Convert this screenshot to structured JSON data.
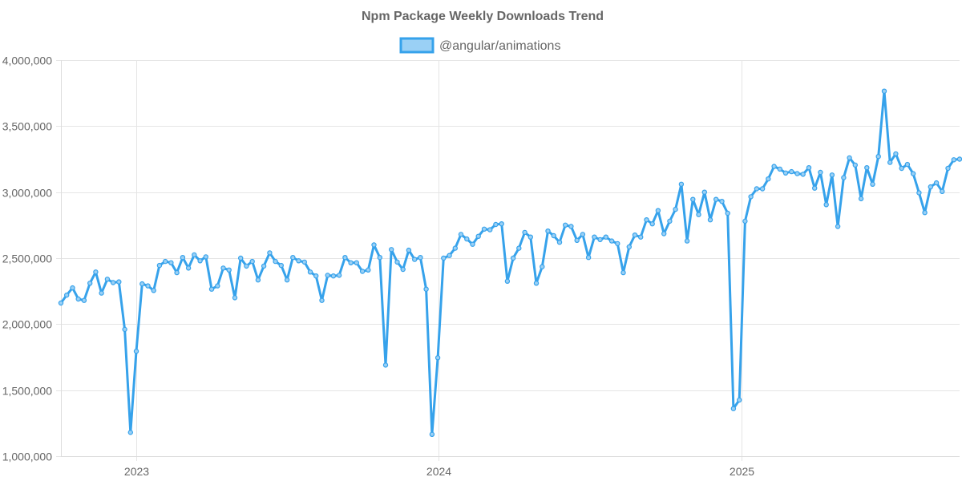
{
  "chart_data": {
    "type": "line",
    "title": "Npm Package Weekly Downloads Trend",
    "xlabel": "",
    "ylabel": "",
    "x_range": [
      "2022-10-02",
      "2025-09-21"
    ],
    "ylim": [
      1000000,
      4000000
    ],
    "y_ticks": [
      1000000,
      1500000,
      2000000,
      2500000,
      3000000,
      3500000,
      4000000
    ],
    "y_tick_labels": [
      "1,000,000",
      "1,500,000",
      "2,000,000",
      "2,500,000",
      "3,000,000",
      "3,500,000",
      "4,000,000"
    ],
    "x_ticks": [
      "2023-01-01",
      "2024-01-01",
      "2025-01-01"
    ],
    "x_tick_labels": [
      "2023",
      "2024",
      "2025"
    ],
    "grid": true,
    "legend_position": "top",
    "series": [
      {
        "name": "@angular/animations",
        "color": "#36a2eb",
        "fill": "#9ad0f5",
        "start_date": "2022-10-02",
        "interval_days": 7,
        "values": [
          2160000,
          2220000,
          2275000,
          2190000,
          2180000,
          2310000,
          2395000,
          2235000,
          2340000,
          2315000,
          2320000,
          1960000,
          1180000,
          1795000,
          2305000,
          2290000,
          2255000,
          2445000,
          2475000,
          2465000,
          2390000,
          2505000,
          2425000,
          2525000,
          2480000,
          2510000,
          2265000,
          2290000,
          2425000,
          2410000,
          2200000,
          2500000,
          2440000,
          2475000,
          2335000,
          2440000,
          2540000,
          2475000,
          2445000,
          2335000,
          2505000,
          2480000,
          2470000,
          2395000,
          2365000,
          2180000,
          2370000,
          2365000,
          2370000,
          2505000,
          2465000,
          2465000,
          2400000,
          2410000,
          2600000,
          2505000,
          1690000,
          2565000,
          2470000,
          2415000,
          2560000,
          2490000,
          2505000,
          2265000,
          1165000,
          1745000,
          2500000,
          2520000,
          2575000,
          2680000,
          2645000,
          2605000,
          2665000,
          2720000,
          2715000,
          2755000,
          2760000,
          2325000,
          2500000,
          2575000,
          2695000,
          2660000,
          2310000,
          2435000,
          2705000,
          2670000,
          2620000,
          2750000,
          2740000,
          2635000,
          2680000,
          2505000,
          2660000,
          2640000,
          2660000,
          2630000,
          2610000,
          2390000,
          2585000,
          2675000,
          2660000,
          2790000,
          2760000,
          2860000,
          2685000,
          2780000,
          2870000,
          3060000,
          2630000,
          2945000,
          2830000,
          3000000,
          2790000,
          2945000,
          2930000,
          2840000,
          1360000,
          1425000,
          2780000,
          2965000,
          3025000,
          3025000,
          3100000,
          3195000,
          3175000,
          3145000,
          3155000,
          3140000,
          3135000,
          3185000,
          3030000,
          3150000,
          2905000,
          3130000,
          2740000,
          3110000,
          3260000,
          3205000,
          2950000,
          3185000,
          3060000,
          3270000,
          3765000,
          3225000,
          3290000,
          3180000,
          3210000,
          3140000,
          2995000,
          2845000,
          3040000,
          3070000,
          3005000,
          3180000,
          3245000,
          3250000
        ]
      }
    ]
  }
}
